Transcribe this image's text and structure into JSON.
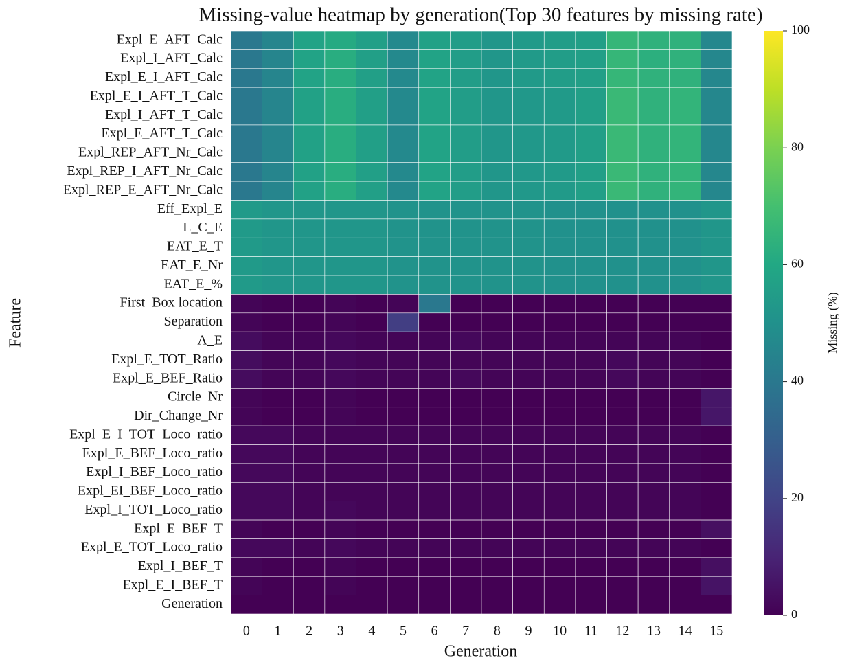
{
  "chart_data": {
    "type": "heatmap",
    "title": "Missing-value heatmap by generation(Top 30 features by missing rate)",
    "x_label": "Generation",
    "y_label": "Feature",
    "colorbar_label": "Missing (%)",
    "colormap": "viridis",
    "columns": [
      0,
      1,
      2,
      3,
      4,
      5,
      6,
      7,
      8,
      9,
      10,
      11,
      12,
      13,
      14,
      15
    ],
    "rows": [
      "Expl_E_AFT_Calc",
      "Expl_I_AFT_Calc",
      "Expl_E_I_AFT_Calc",
      "Expl_E_I_AFT_T_Calc",
      "Expl_I_AFT_T_Calc",
      "Expl_E_AFT_T_Calc",
      "Expl_REP_AFT_Nr_Calc",
      "Expl_REP_I_AFT_Nr_Calc",
      "Expl_REP_E_AFT_Nr_Calc",
      "Eff_Expl_E",
      "L_C_E",
      "EAT_E_T",
      "EAT_E_Nr",
      "EAT_E_%",
      "First_Box location",
      "Separation",
      "A_E",
      "Expl_E_TOT_Ratio",
      "Expl_E_BEF_Ratio",
      "Circle_Nr",
      "Dir_Change_Nr",
      "Expl_E_I_TOT_Loco_ratio",
      "Expl_E_BEF_Loco_ratio",
      "Expl_I_BEF_Loco_ratio",
      "Expl_EI_BEF_Loco_ratio",
      "Expl_I_TOT_Loco_ratio",
      "Expl_E_BEF_T",
      "Expl_E_TOT_Loco_ratio",
      "Expl_I_BEF_T",
      "Expl_E_I_BEF_T",
      "Generation"
    ],
    "values": [
      [
        40,
        45,
        58,
        61,
        56,
        47,
        57,
        55,
        52,
        54,
        55,
        56,
        66,
        64,
        64,
        46
      ],
      [
        40,
        45,
        58,
        62,
        56,
        47,
        58,
        55,
        52,
        54,
        55,
        56,
        66,
        63,
        64,
        46
      ],
      [
        40,
        45,
        58,
        62,
        56,
        47,
        58,
        55,
        52,
        54,
        55,
        56,
        66,
        64,
        64,
        46
      ],
      [
        40,
        45,
        57,
        62,
        56,
        47,
        58,
        55,
        52,
        53,
        54,
        56,
        67,
        64,
        65,
        46
      ],
      [
        40,
        45,
        57,
        62,
        56,
        47,
        58,
        55,
        52,
        53,
        54,
        56,
        67,
        64,
        65,
        46
      ],
      [
        40,
        45,
        57,
        62,
        56,
        47,
        58,
        55,
        52,
        53,
        54,
        56,
        67,
        64,
        65,
        46
      ],
      [
        40,
        45,
        57,
        62,
        56,
        47,
        58,
        55,
        52,
        53,
        54,
        56,
        67,
        64,
        65,
        46
      ],
      [
        40,
        45,
        57,
        62,
        56,
        47,
        58,
        55,
        52,
        53,
        54,
        56,
        67,
        64,
        65,
        46
      ],
      [
        40,
        45,
        57,
        62,
        56,
        47,
        58,
        55,
        52,
        53,
        54,
        56,
        67,
        64,
        65,
        46
      ],
      [
        54,
        52,
        52,
        52,
        52,
        51,
        51,
        51,
        51,
        51,
        50,
        50,
        50,
        50,
        50,
        52
      ],
      [
        54,
        52,
        52,
        52,
        52,
        51,
        51,
        51,
        51,
        51,
        50,
        50,
        50,
        50,
        50,
        52
      ],
      [
        54,
        52,
        52,
        52,
        52,
        51,
        51,
        51,
        51,
        51,
        50,
        50,
        50,
        50,
        50,
        52
      ],
      [
        54,
        52,
        52,
        52,
        52,
        51,
        51,
        51,
        51,
        51,
        50,
        50,
        50,
        50,
        50,
        52
      ],
      [
        54,
        52,
        52,
        52,
        52,
        51,
        51,
        51,
        51,
        51,
        50,
        50,
        50,
        50,
        50,
        52
      ],
      [
        1,
        0,
        0,
        1,
        0,
        1,
        40,
        0,
        0,
        0,
        0,
        0,
        0,
        0,
        0,
        0
      ],
      [
        1,
        0,
        0,
        1,
        0,
        18,
        0,
        0,
        0,
        0,
        0,
        0,
        0,
        0,
        0,
        0
      ],
      [
        3,
        1,
        1,
        2,
        1,
        1,
        1,
        2,
        1,
        1,
        1,
        1,
        1,
        1,
        1,
        0
      ],
      [
        3,
        1,
        1,
        2,
        1,
        1,
        1,
        1,
        1,
        1,
        1,
        1,
        2,
        1,
        1,
        0
      ],
      [
        3,
        1,
        1,
        2,
        1,
        1,
        1,
        2,
        1,
        1,
        1,
        1,
        2,
        1,
        1,
        0
      ],
      [
        1,
        0,
        0,
        1,
        0,
        0,
        0,
        0,
        0,
        0,
        0,
        0,
        0,
        0,
        0,
        6
      ],
      [
        1,
        0,
        0,
        1,
        0,
        0,
        0,
        0,
        0,
        0,
        0,
        0,
        0,
        0,
        0,
        6
      ],
      [
        2,
        2,
        1,
        1,
        1,
        1,
        1,
        1,
        1,
        1,
        1,
        1,
        1,
        1,
        1,
        0
      ],
      [
        2,
        2,
        1,
        1,
        1,
        1,
        1,
        1,
        1,
        1,
        1,
        1,
        1,
        1,
        1,
        0
      ],
      [
        2,
        2,
        1,
        1,
        1,
        1,
        1,
        1,
        1,
        1,
        1,
        1,
        1,
        1,
        1,
        0
      ],
      [
        2,
        2,
        1,
        1,
        1,
        1,
        1,
        1,
        1,
        1,
        1,
        1,
        1,
        1,
        1,
        0
      ],
      [
        2,
        2,
        1,
        2,
        1,
        1,
        1,
        1,
        1,
        1,
        1,
        1,
        1,
        1,
        1,
        0
      ],
      [
        1,
        0,
        0,
        1,
        0,
        0,
        0,
        0,
        0,
        0,
        0,
        0,
        0,
        0,
        0,
        4
      ],
      [
        2,
        2,
        1,
        2,
        1,
        1,
        1,
        1,
        1,
        1,
        1,
        1,
        1,
        1,
        1,
        0
      ],
      [
        1,
        0,
        0,
        1,
        0,
        0,
        0,
        0,
        0,
        0,
        0,
        0,
        0,
        0,
        0,
        4
      ],
      [
        1,
        0,
        0,
        1,
        0,
        0,
        0,
        0,
        0,
        0,
        0,
        0,
        0,
        0,
        0,
        5
      ],
      [
        0,
        0,
        0,
        0,
        0,
        0,
        0,
        0,
        0,
        0,
        0,
        0,
        0,
        0,
        0,
        0
      ]
    ],
    "clim": [
      0,
      100
    ],
    "cticks": [
      0,
      20,
      40,
      60,
      80,
      100
    ]
  }
}
